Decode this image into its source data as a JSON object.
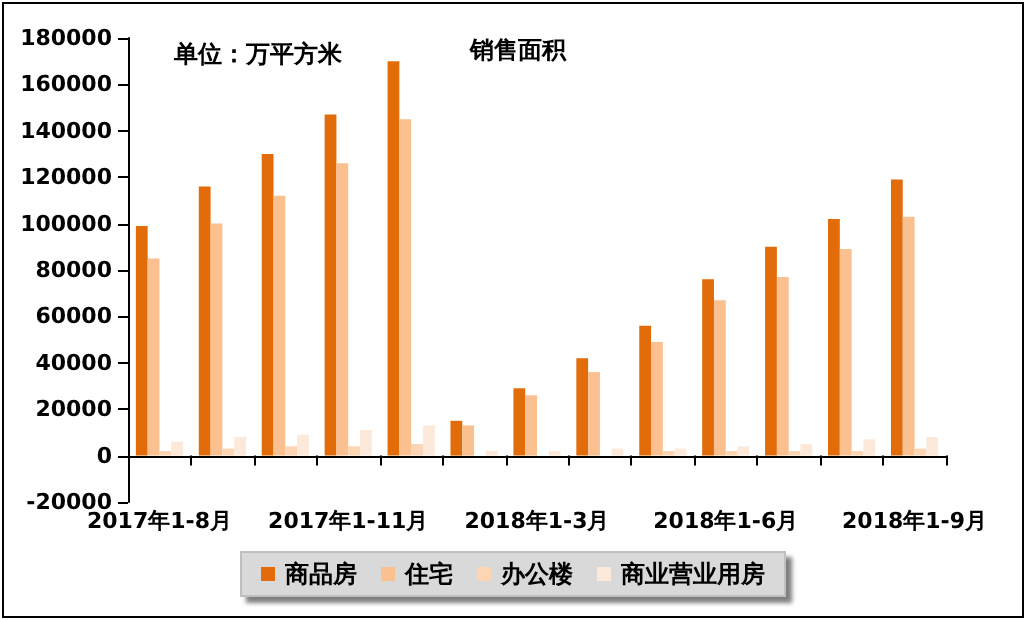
{
  "chart_data": {
    "type": "bar",
    "title": "销售面积",
    "annotations": [
      "单位：万平方米"
    ],
    "categories": [
      "2017年1-8月",
      null,
      null,
      "2017年1-11月",
      null,
      null,
      "2018年1-3月",
      null,
      null,
      "2018年1-6月",
      null,
      null,
      "2018年1-9月"
    ],
    "series": [
      {
        "name": "商品房",
        "color": "#e36c0a",
        "values": [
          99000,
          116000,
          130000,
          147000,
          170000,
          15000,
          29000,
          42000,
          56000,
          76000,
          90000,
          102000,
          119000
        ]
      },
      {
        "name": "住宅",
        "color": "#fac090",
        "values": [
          85000,
          100000,
          112000,
          126000,
          145000,
          13000,
          26000,
          36000,
          49000,
          67000,
          77000,
          89000,
          103000
        ]
      },
      {
        "name": "办公楼",
        "color": "#fcd5b5",
        "values": [
          2000,
          3000,
          4000,
          4000,
          5000,
          null,
          null,
          null,
          2000,
          2000,
          2000,
          2000,
          3000
        ]
      },
      {
        "name": "商业营业用房",
        "color": "#fde9d9",
        "values": [
          6000,
          8000,
          9000,
          11000,
          13000,
          2000,
          2000,
          3000,
          3000,
          4000,
          5000,
          7000,
          8000
        ]
      }
    ],
    "ylim": [
      -20000,
      180000
    ],
    "yticks": [
      -20000,
      0,
      20000,
      40000,
      60000,
      80000,
      100000,
      120000,
      140000,
      160000,
      180000
    ],
    "grid": false,
    "legend": "bottom"
  }
}
